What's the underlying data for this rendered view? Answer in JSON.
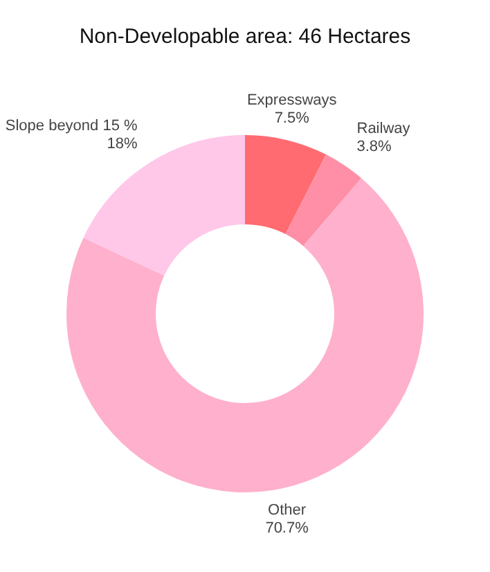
{
  "chart_data": {
    "type": "donut",
    "title": "Non-Developable area: 46 Hectares",
    "categories": [
      "Expressways",
      "Railway",
      "Other",
      "Slope beyond 15 %"
    ],
    "values": [
      7.5,
      3.8,
      70.7,
      18
    ],
    "colors": [
      "#ff6b70",
      "#ff8fa6",
      "#ffb0cc",
      "#ffc8e8"
    ],
    "value_labels": [
      "7.5%",
      "3.8%",
      "70.7%",
      "18%"
    ],
    "legend": false
  }
}
